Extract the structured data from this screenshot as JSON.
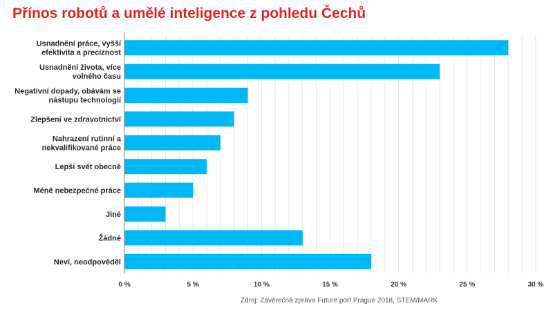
{
  "title": "Přínos robotů a umělé inteligence z pohledu Čechů",
  "source": "Zdroj: Závěrečná zpráva Future port Prague 2018, STEM/MARK",
  "colors": {
    "title": "#e02424",
    "bar": "#00b8f5",
    "grid": "#e6e6e6",
    "axis": "#7f7f7f"
  },
  "chart_data": {
    "type": "bar",
    "orientation": "horizontal",
    "title": "Přínos robotů a umělé inteligence z pohledu Čechů",
    "categories": [
      [
        "Usnadnění práce, vyšší",
        "efektivita a preciznost"
      ],
      [
        "Usnadnění života, více",
        "volného času"
      ],
      [
        "Negativní dopady, obávám se",
        "nástupu technologií"
      ],
      [
        "Zlepšení ve zdravotnictví"
      ],
      [
        "Nahrazení rutinní a",
        "nekvalifikované práce"
      ],
      [
        "Lepší svět obecně"
      ],
      [
        "Méně nebezpečné práce"
      ],
      [
        "Jiné"
      ],
      [
        "Žádné"
      ],
      [
        "Neví, neodpověděl"
      ]
    ],
    "values": [
      28,
      23,
      9,
      8,
      7,
      6,
      5,
      3,
      13,
      18
    ],
    "xlim": [
      0,
      30
    ],
    "xticks": [
      0,
      5,
      10,
      15,
      20,
      25,
      30
    ],
    "xtick_labels": [
      "0 %",
      "5 %",
      "10 %",
      "15 %",
      "20 %",
      "25 %",
      "30 %"
    ],
    "xlabel": "",
    "ylabel": "",
    "grid": "vertical",
    "legend": "none"
  }
}
